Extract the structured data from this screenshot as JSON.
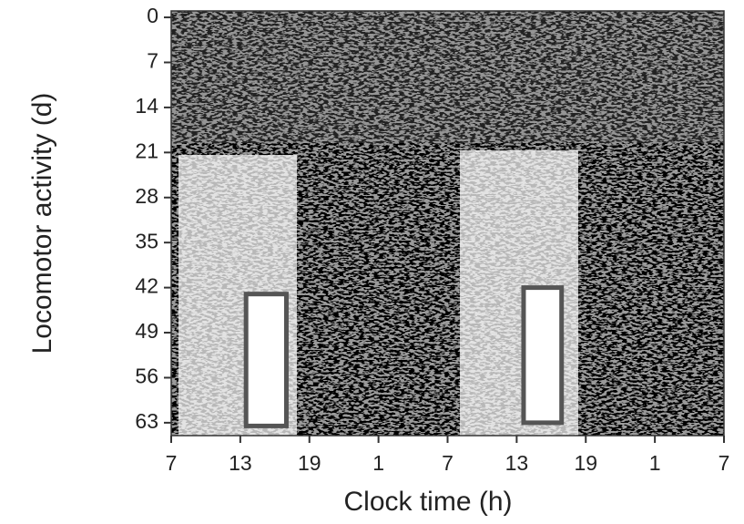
{
  "chart_data": {
    "type": "actogram",
    "x_label": "Clock time (h)",
    "y_label": "Locomotor activity (d)",
    "xlim": [
      0,
      48
    ],
    "xticks": [
      {
        "value": 0,
        "label": "7"
      },
      {
        "value": 6,
        "label": "13"
      },
      {
        "value": 12,
        "label": "19"
      },
      {
        "value": 18,
        "label": "1"
      },
      {
        "value": 24,
        "label": "7"
      },
      {
        "value": 30,
        "label": "13"
      },
      {
        "value": 36,
        "label": "19"
      },
      {
        "value": 42,
        "label": "1"
      },
      {
        "value": 48,
        "label": "7"
      }
    ],
    "ylim": [
      -1,
      65
    ],
    "y_inverted": true,
    "yticks": [
      0,
      7,
      14,
      21,
      28,
      35,
      42,
      49,
      56,
      63
    ],
    "boxes": [
      {
        "x": [
          6.5,
          10
        ],
        "y": [
          43,
          63.5
        ]
      },
      {
        "x": [
          30.6,
          33.9
        ],
        "y": [
          42,
          63
        ]
      }
    ],
    "box_color": "#555555"
  }
}
